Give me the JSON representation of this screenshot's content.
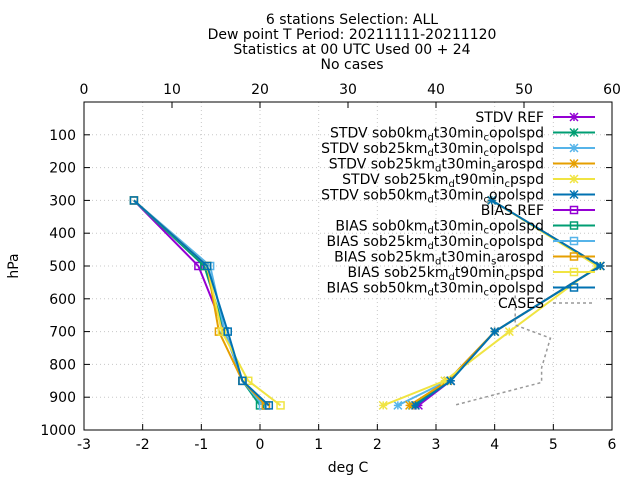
{
  "chart_data": {
    "type": "line",
    "title_lines": [
      "6 stations Selection: ALL",
      "Dew point T  Period: 20211111-20211120",
      "Statistics at 00 UTC  Used 00 + 24",
      "No cases"
    ],
    "xlabel": "deg C",
    "ylabel": "hPa",
    "xlim": [
      -3,
      6
    ],
    "ylim": [
      1000,
      0
    ],
    "x_ticks": [
      -3,
      -2,
      -1,
      0,
      1,
      2,
      3,
      4,
      5,
      6
    ],
    "y_ticks": [
      100,
      200,
      300,
      400,
      500,
      600,
      700,
      800,
      900,
      1000
    ],
    "x2_label": "",
    "x2lim": [
      0,
      60
    ],
    "x2_ticks": [
      0,
      10,
      20,
      30,
      40,
      50,
      60
    ],
    "grid": true,
    "legend_position": "top-right",
    "series": [
      {
        "name": "STDV REF",
        "legend_parts": [
          [
            "STDV REF",
            ""
          ]
        ],
        "kind": "stdv",
        "color": "#9400d3",
        "marker": "x",
        "points": [
          [
            3.95,
            300
          ],
          [
            5.8,
            500
          ],
          [
            4.0,
            700
          ],
          [
            3.25,
            850
          ],
          [
            2.7,
            925
          ]
        ]
      },
      {
        "name": "STDV sob0km_d t30min_c opolspd",
        "legend_parts": [
          [
            "STDV sob0km",
            ""
          ],
          [
            "d",
            "sub"
          ],
          [
            "t30min",
            ""
          ],
          [
            "c",
            "sub"
          ],
          [
            "opolspd",
            ""
          ]
        ],
        "kind": "stdv",
        "color": "#009e73",
        "marker": "x",
        "points": [
          [
            3.95,
            300
          ],
          [
            5.8,
            500
          ],
          [
            4.0,
            700
          ],
          [
            3.25,
            850
          ],
          [
            2.6,
            925
          ]
        ]
      },
      {
        "name": "STDV sob25km_d t30min_c opolspd",
        "legend_parts": [
          [
            "STDV sob25km",
            ""
          ],
          [
            "d",
            "sub"
          ],
          [
            "t30min",
            ""
          ],
          [
            "c",
            "sub"
          ],
          [
            "opolspd",
            ""
          ]
        ],
        "kind": "stdv",
        "color": "#56b4e9",
        "marker": "x",
        "points": [
          [
            3.95,
            300
          ],
          [
            5.8,
            500
          ],
          [
            4.0,
            700
          ],
          [
            3.2,
            850
          ],
          [
            2.35,
            925
          ]
        ]
      },
      {
        "name": "STDV sob25km_d t30min_s arospd",
        "legend_parts": [
          [
            "STDV sob25km",
            ""
          ],
          [
            "d",
            "sub"
          ],
          [
            "t30min",
            ""
          ],
          [
            "s",
            "sub"
          ],
          [
            "arospd",
            ""
          ]
        ],
        "kind": "stdv",
        "color": "#e69f00",
        "marker": "x",
        "points": [
          [
            3.95,
            300
          ],
          [
            5.8,
            500
          ],
          [
            4.0,
            700
          ],
          [
            3.2,
            850
          ],
          [
            2.55,
            925
          ]
        ]
      },
      {
        "name": "STDV sob25km_d t90min_c pspd",
        "legend_parts": [
          [
            "STDV sob25km",
            ""
          ],
          [
            "d",
            "sub"
          ],
          [
            "t90min",
            ""
          ],
          [
            "c",
            "sub"
          ],
          [
            "pspd",
            ""
          ]
        ],
        "kind": "stdv",
        "color": "#f0e442",
        "marker": "x",
        "points": [
          [
            3.95,
            300
          ],
          [
            5.75,
            500
          ],
          [
            4.25,
            700
          ],
          [
            3.15,
            850
          ],
          [
            2.1,
            925
          ]
        ]
      },
      {
        "name": "STDV sob50km_d t30min_c opolspd",
        "legend_parts": [
          [
            "STDV sob50km",
            ""
          ],
          [
            "d",
            "sub"
          ],
          [
            "t30min",
            ""
          ],
          [
            "c",
            "sub"
          ],
          [
            "opolspd",
            ""
          ]
        ],
        "kind": "stdv",
        "color": "#0072b2",
        "marker": "x",
        "points": [
          [
            3.95,
            300
          ],
          [
            5.8,
            500
          ],
          [
            4.0,
            700
          ],
          [
            3.25,
            850
          ],
          [
            2.65,
            925
          ]
        ]
      },
      {
        "name": "BIAS REF",
        "legend_parts": [
          [
            "BIAS REF",
            ""
          ]
        ],
        "kind": "bias",
        "color": "#9400d3",
        "marker": "square",
        "points": [
          [
            -2.15,
            300
          ],
          [
            -1.05,
            500
          ],
          [
            -0.6,
            700
          ],
          [
            -0.3,
            850
          ],
          [
            0.1,
            925
          ]
        ]
      },
      {
        "name": "BIAS sob0km_d t30min_c opolspd",
        "legend_parts": [
          [
            "BIAS sob0km",
            ""
          ],
          [
            "d",
            "sub"
          ],
          [
            "t30min",
            ""
          ],
          [
            "c",
            "sub"
          ],
          [
            "opolspd",
            ""
          ]
        ],
        "kind": "bias",
        "color": "#009e73",
        "marker": "square",
        "points": [
          [
            -2.15,
            300
          ],
          [
            -0.95,
            500
          ],
          [
            -0.6,
            700
          ],
          [
            -0.3,
            850
          ],
          [
            0.0,
            925
          ]
        ]
      },
      {
        "name": "BIAS sob25km_d t30min_c opolspd",
        "legend_parts": [
          [
            "BIAS sob25km",
            ""
          ],
          [
            "d",
            "sub"
          ],
          [
            "t30min",
            ""
          ],
          [
            "c",
            "sub"
          ],
          [
            "opolspd",
            ""
          ]
        ],
        "kind": "bias",
        "color": "#56b4e9",
        "marker": "square",
        "points": [
          [
            -2.15,
            300
          ],
          [
            -0.85,
            500
          ],
          [
            -0.6,
            700
          ],
          [
            -0.3,
            850
          ],
          [
            0.05,
            925
          ]
        ]
      },
      {
        "name": "BIAS sob25km_d t30min_s arospd",
        "legend_parts": [
          [
            "BIAS sob25km",
            ""
          ],
          [
            "d",
            "sub"
          ],
          [
            "t30min",
            ""
          ],
          [
            "s",
            "sub"
          ],
          [
            "arospd",
            ""
          ]
        ],
        "kind": "bias",
        "color": "#e69f00",
        "marker": "square",
        "points": [
          [
            -2.15,
            300
          ],
          [
            -0.9,
            500
          ],
          [
            -0.7,
            700
          ],
          [
            -0.3,
            850
          ],
          [
            0.1,
            925
          ]
        ]
      },
      {
        "name": "BIAS sob25km_d t90min_c pspd",
        "legend_parts": [
          [
            "BIAS sob25km",
            ""
          ],
          [
            "d",
            "sub"
          ],
          [
            "t90min",
            ""
          ],
          [
            "c",
            "sub"
          ],
          [
            "pspd",
            ""
          ]
        ],
        "kind": "bias",
        "color": "#f0e442",
        "marker": "square",
        "points": [
          [
            -2.15,
            300
          ],
          [
            -0.9,
            500
          ],
          [
            -0.65,
            700
          ],
          [
            -0.2,
            850
          ],
          [
            0.35,
            925
          ]
        ]
      },
      {
        "name": "BIAS sob50km_d t30min_c opolspd",
        "legend_parts": [
          [
            "BIAS sob50km",
            ""
          ],
          [
            "d",
            "sub"
          ],
          [
            "t30min",
            ""
          ],
          [
            "c",
            "sub"
          ],
          [
            "opolspd",
            ""
          ]
        ],
        "kind": "bias",
        "color": "#0072b2",
        "marker": "square",
        "points": [
          [
            -2.15,
            300
          ],
          [
            -0.9,
            500
          ],
          [
            -0.55,
            700
          ],
          [
            -0.3,
            850
          ],
          [
            0.15,
            925
          ]
        ]
      },
      {
        "name": "CASES",
        "legend_parts": [
          [
            "CASES",
            ""
          ]
        ],
        "kind": "cases",
        "color": "#999999",
        "marker": "none",
        "axis": "x2",
        "points": [
          [
            49,
            590
          ],
          [
            49,
            680
          ],
          [
            53,
            720
          ],
          [
            52,
            810
          ],
          [
            52,
            855
          ],
          [
            42,
            925
          ]
        ]
      }
    ]
  }
}
